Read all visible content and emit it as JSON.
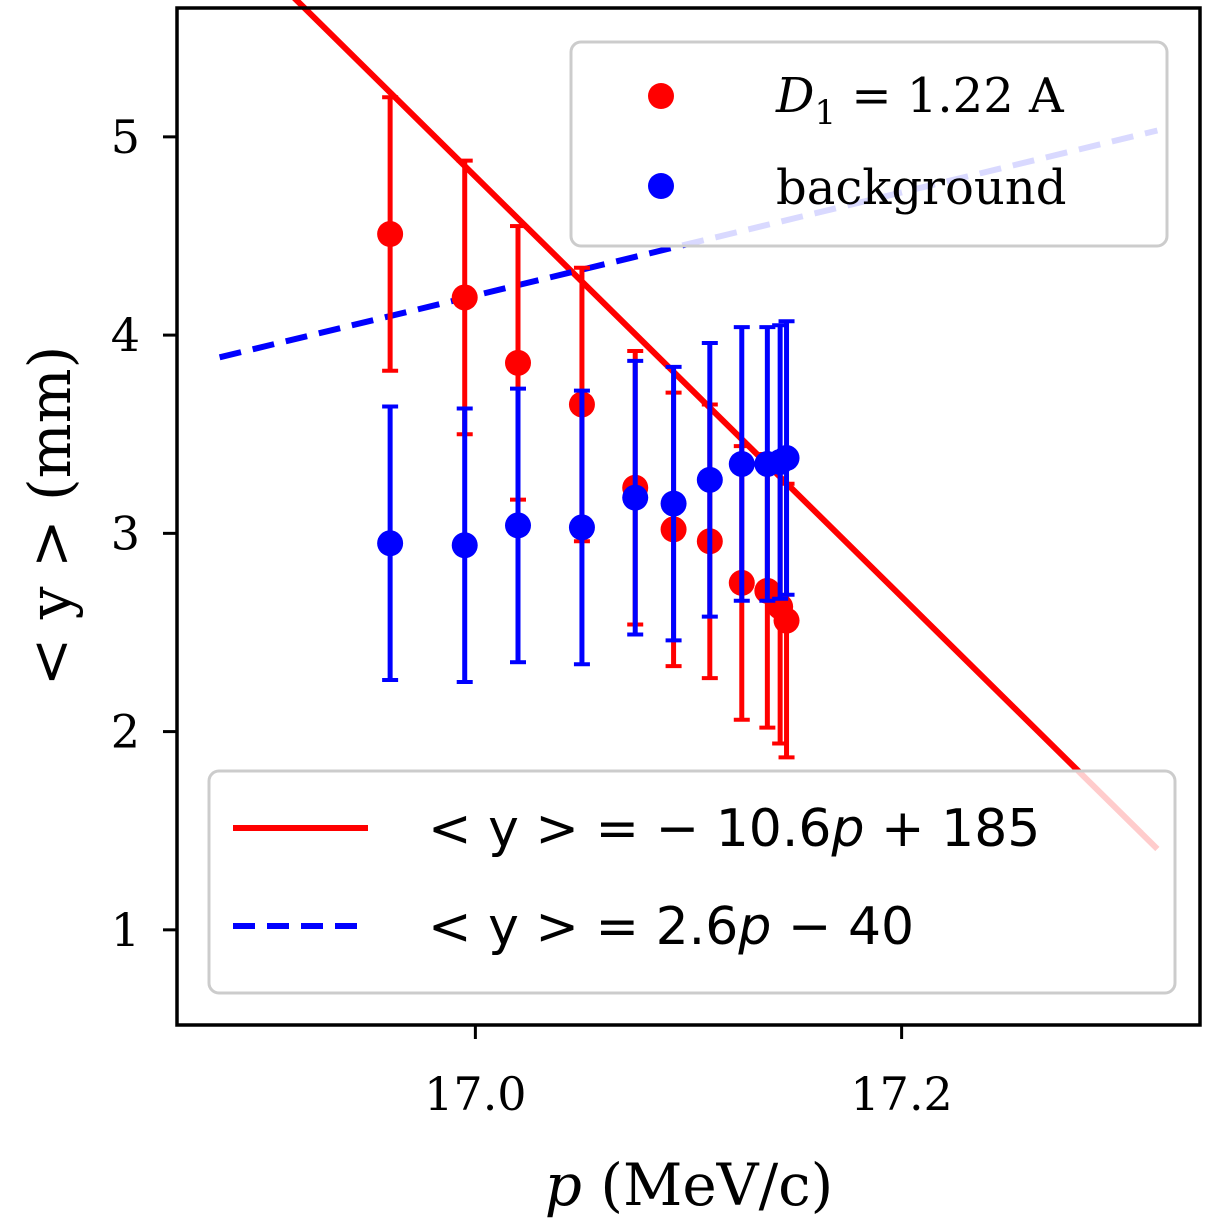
{
  "chart_data": {
    "type": "scatter",
    "title": "",
    "xlabel": "p (MeV/c)",
    "xlabel_var": "p",
    "xlabel_unit": "(MeV/c)",
    "ylabel": "< y >  (mm)",
    "xlim": [
      16.86,
      17.34
    ],
    "ylim": [
      0.52,
      5.65
    ],
    "x_ticks": [
      17.0,
      17.2
    ],
    "x_tick_labels": [
      "17.0",
      "17.2"
    ],
    "y_ticks": [
      1,
      2,
      3,
      4,
      5
    ],
    "y_tick_labels": [
      "1",
      "2",
      "3",
      "4",
      "5"
    ],
    "grid": false,
    "series": [
      {
        "name": "D1 = 1.22 A",
        "legend_label_main": "D",
        "legend_label_sub": "1",
        "legend_label_rest": " = 1.22 A",
        "kind": "points",
        "color": "#ff0000",
        "x": [
          16.96,
          16.995,
          17.02,
          17.05,
          17.075,
          17.093,
          17.11,
          17.125,
          17.137,
          17.143,
          17.146
        ],
        "y": [
          4.51,
          4.19,
          3.86,
          3.65,
          3.23,
          3.02,
          2.96,
          2.75,
          2.71,
          2.63,
          2.56
        ],
        "yerr": [
          0.69,
          0.69,
          0.69,
          0.69,
          0.69,
          0.69,
          0.69,
          0.69,
          0.69,
          0.69,
          0.69
        ]
      },
      {
        "name": "background",
        "legend_label": "background",
        "kind": "points",
        "color": "#0000ff",
        "x": [
          16.96,
          16.995,
          17.02,
          17.05,
          17.075,
          17.093,
          17.11,
          17.125,
          17.137,
          17.143,
          17.146
        ],
        "y": [
          2.95,
          2.94,
          3.04,
          3.03,
          3.18,
          3.15,
          3.27,
          3.35,
          3.35,
          3.36,
          3.38
        ],
        "yerr": [
          0.69,
          0.69,
          0.69,
          0.69,
          0.69,
          0.69,
          0.69,
          0.69,
          0.69,
          0.69,
          0.69
        ]
      }
    ],
    "fits": [
      {
        "name": "< y > = − 10.6p + 185",
        "label_prefix": "< y > = − 10.6",
        "label_var": "p",
        "label_suffix": " + 185",
        "slope": -10.6,
        "intercept": 185,
        "x_range": [
          16.88,
          17.32
        ],
        "color": "#ff0000",
        "style": "solid",
        "clip_ymin": 0.72
      },
      {
        "name": "< y > = 2.6p − 40",
        "label_prefix": "< y > = 2.6",
        "label_var": "p",
        "label_suffix": " − 40",
        "slope": 2.6,
        "intercept": -40,
        "x_range": [
          16.88,
          17.32
        ],
        "color": "#0000ff",
        "style": "dashed"
      }
    ],
    "legends": [
      "top-right",
      "bottom-right"
    ]
  }
}
